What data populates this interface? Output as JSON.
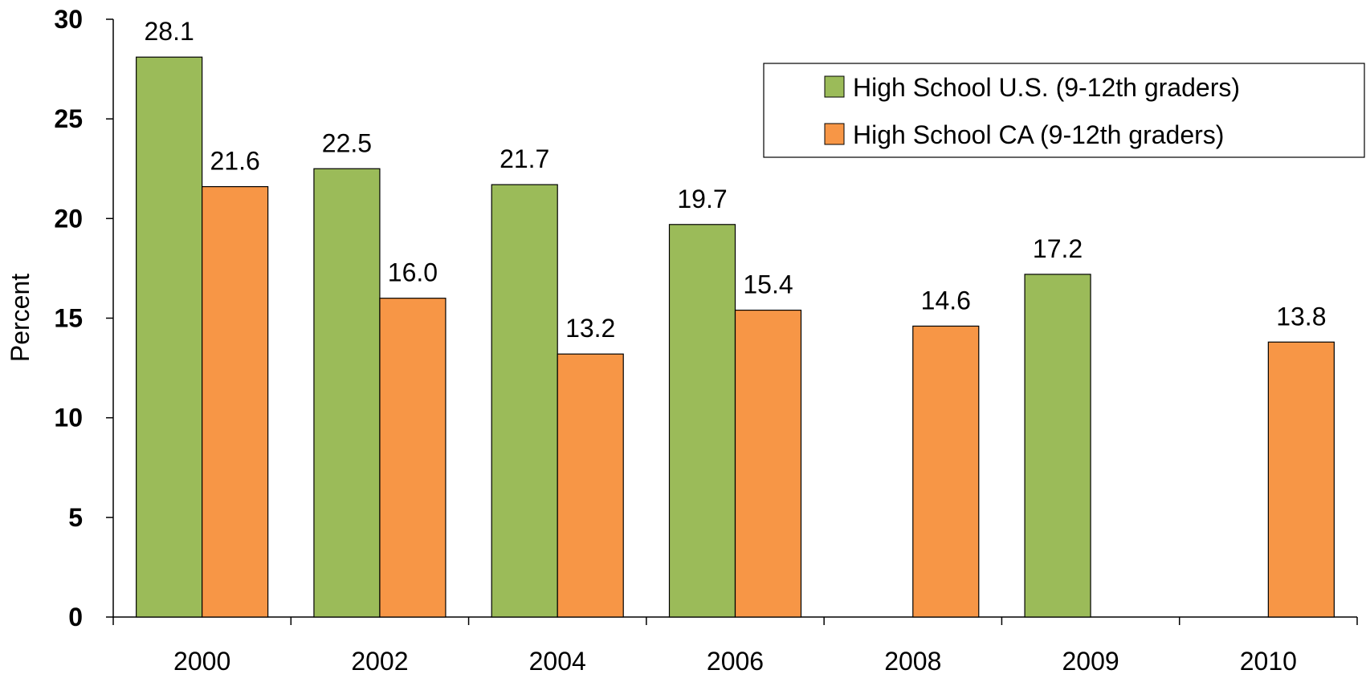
{
  "chart_data": {
    "type": "bar",
    "categories": [
      "2000",
      "2002",
      "2004",
      "2006",
      "2008",
      "2009",
      "2010"
    ],
    "series": [
      {
        "name": "High School U.S. (9-12th graders)",
        "color": "#9BBB59",
        "values": [
          28.1,
          22.5,
          21.7,
          19.7,
          null,
          17.2,
          null
        ],
        "labels": [
          "28.1",
          "22.5",
          "21.7",
          "19.7",
          null,
          "17.2",
          null
        ]
      },
      {
        "name": "High School CA (9-12th graders)",
        "color": "#F79646",
        "values": [
          21.6,
          16.0,
          13.2,
          15.4,
          14.6,
          null,
          13.8
        ],
        "labels": [
          "21.6",
          "16.0",
          "13.2",
          "15.4",
          "14.6",
          null,
          "13.8"
        ]
      }
    ],
    "ylabel": "Percent",
    "xlabel": "",
    "ylim": [
      0,
      30
    ],
    "yticks": [
      0,
      5,
      10,
      15,
      20,
      25,
      30
    ],
    "ytick_labels": [
      "0",
      "5",
      "10",
      "15",
      "20",
      "25",
      "30"
    ],
    "grid": false,
    "legend_position": "top-right"
  }
}
